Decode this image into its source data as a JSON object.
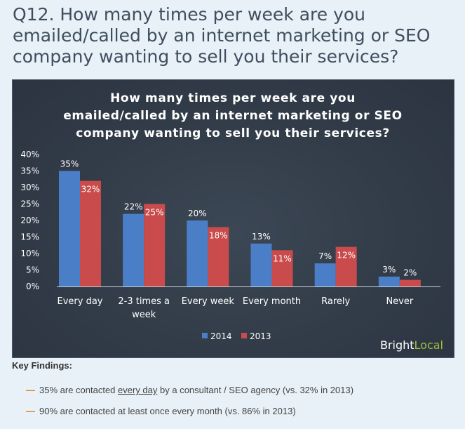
{
  "heading": "Q12. How many times per week are you emailed/called by an internet marketing or SEO company wanting to sell you their services?",
  "chart_data": {
    "type": "bar",
    "title_lines": [
      "How many times per week are you",
      "emailed/called by an internet marketing or SEO",
      "company wanting to sell you their services?"
    ],
    "categories": [
      "Every day",
      "2-3 times a week",
      "Every week",
      "Every month",
      "Rarely",
      "Never"
    ],
    "category_lines": [
      [
        "Every day"
      ],
      [
        "2-3 times a",
        "week"
      ],
      [
        "Every week"
      ],
      [
        "Every month"
      ],
      [
        "Rarely"
      ],
      [
        "Never"
      ]
    ],
    "series": [
      {
        "name": "2014",
        "values": [
          35,
          22,
          20,
          13,
          7,
          3
        ],
        "labels": [
          "35%",
          "22%",
          "20%",
          "13%",
          "7%",
          "3%"
        ],
        "color": "#4a7fc8"
      },
      {
        "name": "2013",
        "values": [
          32,
          25,
          18,
          11,
          12,
          2
        ],
        "labels": [
          "32%",
          "25%",
          "18%",
          "11%",
          "12%",
          "2%"
        ],
        "color": "#c94b4b"
      }
    ],
    "yticks": [
      "0%",
      "5%",
      "10%",
      "15%",
      "20%",
      "25%",
      "30%",
      "35%",
      "40%"
    ],
    "ylim": [
      0,
      40
    ],
    "grid": false,
    "legend": "bottom",
    "xlabel": "",
    "ylabel": ""
  },
  "brand": {
    "part1": "Bright",
    "part2": "Local",
    "color1": "#ffffff",
    "color2": "#9cc23c"
  },
  "key_findings": {
    "title": "Key Findings:",
    "items": [
      {
        "before": "35% are contacted ",
        "underlined": "every day",
        "after": " by a consultant / SEO agency (vs. 32% in 2013)"
      },
      {
        "before": "90% are contacted at least once every month (vs. 86% in 2013)",
        "underlined": "",
        "after": ""
      }
    ]
  }
}
